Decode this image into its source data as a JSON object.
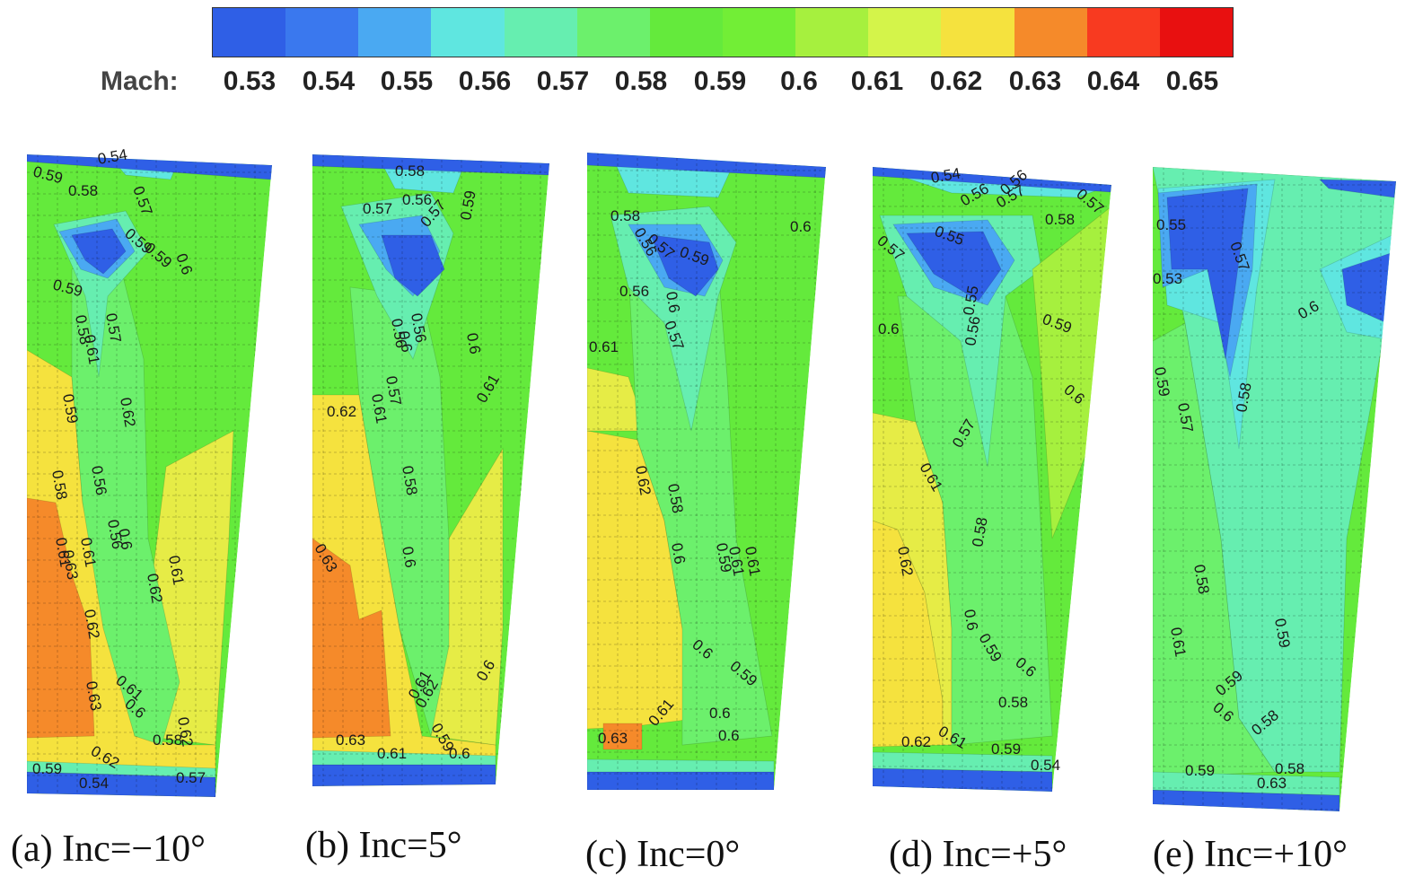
{
  "chart_data": {
    "type": "heatmap",
    "colorbar": {
      "label": "Mach:",
      "ticks": [
        "0.53",
        "0.54",
        "0.55",
        "0.56",
        "0.57",
        "0.58",
        "0.59",
        "0.6",
        "0.61",
        "0.62",
        "0.63",
        "0.64",
        "0.65"
      ],
      "colors": [
        "#2f5fe6",
        "#3a78ee",
        "#4aa9f2",
        "#5fe6e0",
        "#66eeb0",
        "#6cf06c",
        "#64ea3c",
        "#72ee36",
        "#a6f03e",
        "#d4f44a",
        "#f5e23e",
        "#f58a2a",
        "#f83a20",
        "#e81010"
      ]
    },
    "panels": [
      {
        "caption": "(a) Inc=−10°",
        "contour_labels": [
          "0.54",
          "0.59",
          "0.58",
          "0.57",
          "0.59",
          "0.59",
          "0.6",
          "0.59",
          "0.58",
          "0.57",
          "0.61",
          "0.59",
          "0.58",
          "0.61",
          "0.62",
          "0.56",
          "0.56",
          "0.6",
          "0.63",
          "0.61",
          "0.62",
          "0.61",
          "0.62",
          "0.63",
          "0.61",
          "0.6",
          "0.62",
          "0.62",
          "0.58",
          "0.59",
          "0.54",
          "0.57"
        ]
      },
      {
        "caption": "(b) Inc=5°",
        "contour_labels": [
          "0.57",
          "0.58",
          "0.56",
          "0.57",
          "0.59",
          "0.6",
          "0.56",
          "0.56",
          "0.57",
          "0.6",
          "0.61",
          "0.62",
          "0.61",
          "0.58",
          "0.6",
          "0.63",
          "0.6",
          "0.61",
          "0.62",
          "0.59",
          "0.63",
          "0.61",
          "0.6"
        ]
      },
      {
        "caption": "(c) Inc=0°",
        "contour_labels": [
          "0.58",
          "0.56",
          "0.57",
          "0.59",
          "0.6",
          "0.56",
          "0.61",
          "0.6",
          "0.57",
          "0.62",
          "0.58",
          "0.6",
          "0.61",
          "0.59",
          "0.61",
          "0.6",
          "0.59",
          "0.6",
          "0.63",
          "0.61",
          "0.6"
        ]
      },
      {
        "caption": "(d) Inc=+5°",
        "contour_labels": [
          "0.57",
          "0.54",
          "0.56",
          "0.57",
          "0.56",
          "0.58",
          "0.55",
          "0.57",
          "0.6",
          "0.55",
          "0.56",
          "0.59",
          "0.6",
          "0.61",
          "0.57",
          "0.62",
          "0.58",
          "0.6",
          "0.59",
          "0.6",
          "0.58",
          "0.62",
          "0.61",
          "0.59",
          "0.54"
        ]
      },
      {
        "caption": "(e) Inc=+10°",
        "contour_labels": [
          "0.55",
          "0.53",
          "0.57",
          "0.6",
          "0.59",
          "0.57",
          "0.58",
          "0.58",
          "0.61",
          "0.59",
          "0.6",
          "0.59",
          "0.58",
          "0.58",
          "0.59",
          "0.63"
        ]
      }
    ]
  }
}
